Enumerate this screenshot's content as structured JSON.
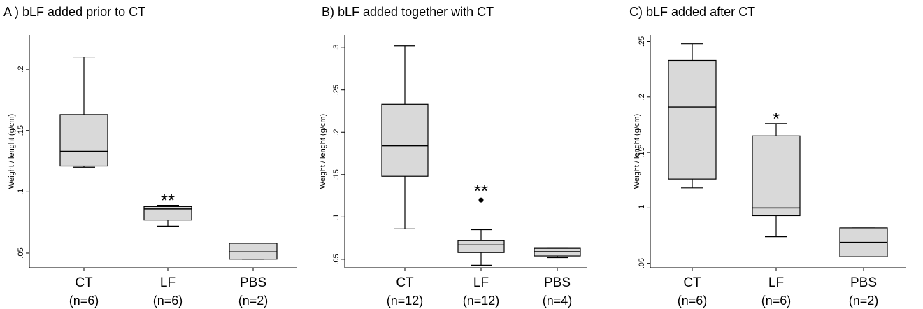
{
  "chart_data": [
    {
      "type": "box",
      "title": "A ) bLF added prior to CT",
      "ylabel": "Weight / lenght (g/cm)",
      "ylim": [
        0.038,
        0.228
      ],
      "yticks": [
        0.05,
        0.1,
        0.15,
        0.2
      ],
      "ytick_labels": [
        ".05",
        ".1",
        ".15",
        ".2"
      ],
      "categories": [
        {
          "name": "CT",
          "n_label": "(n=6)"
        },
        {
          "name": "LF",
          "n_label": "(n=6)"
        },
        {
          "name": "PBS",
          "n_label": "(n=2)"
        }
      ],
      "boxes": [
        {
          "whisker_low": 0.12,
          "q1": 0.121,
          "median": 0.133,
          "q3": 0.163,
          "whisker_high": 0.21,
          "outliers": [],
          "annotation": ""
        },
        {
          "whisker_low": 0.072,
          "q1": 0.077,
          "median": 0.086,
          "q3": 0.088,
          "whisker_high": 0.089,
          "outliers": [],
          "annotation": "**"
        },
        {
          "whisker_low": 0.045,
          "q1": 0.045,
          "median": 0.051,
          "q3": 0.058,
          "whisker_high": 0.058,
          "outliers": [],
          "annotation": ""
        }
      ]
    },
    {
      "type": "box",
      "title": "B) bLF added together with CT",
      "ylabel": "Weight / lenght (g/cm)",
      "ylim": [
        0.04,
        0.315
      ],
      "yticks": [
        0.05,
        0.1,
        0.15,
        0.2,
        0.25,
        0.3
      ],
      "ytick_labels": [
        ".05",
        ".1",
        ".15",
        ".2",
        ".25",
        ".3"
      ],
      "categories": [
        {
          "name": "CT",
          "n_label": "(n=12)"
        },
        {
          "name": "LF",
          "n_label": "(n=12)"
        },
        {
          "name": "PBS",
          "n_label": "(n=4)"
        }
      ],
      "boxes": [
        {
          "whisker_low": 0.086,
          "q1": 0.148,
          "median": 0.184,
          "q3": 0.233,
          "whisker_high": 0.302,
          "outliers": [],
          "annotation": ""
        },
        {
          "whisker_low": 0.043,
          "q1": 0.058,
          "median": 0.067,
          "q3": 0.072,
          "whisker_high": 0.085,
          "outliers": [
            0.12
          ],
          "annotation": "**"
        },
        {
          "whisker_low": 0.052,
          "q1": 0.054,
          "median": 0.059,
          "q3": 0.063,
          "whisker_high": 0.063,
          "outliers": [],
          "annotation": ""
        }
      ]
    },
    {
      "type": "box",
      "title": "C) bLF added after CT",
      "ylabel": "Weight / lenght (g/cm)",
      "ylim": [
        0.046,
        0.256
      ],
      "yticks": [
        0.05,
        0.1,
        0.15,
        0.2,
        0.25
      ],
      "ytick_labels": [
        ".05",
        ".1",
        ".15",
        ".2",
        ".25"
      ],
      "categories": [
        {
          "name": "CT",
          "n_label": "(n=6)"
        },
        {
          "name": "LF",
          "n_label": "(n=6)"
        },
        {
          "name": "PBS",
          "n_label": "(n=2)"
        }
      ],
      "boxes": [
        {
          "whisker_low": 0.118,
          "q1": 0.126,
          "median": 0.191,
          "q3": 0.233,
          "whisker_high": 0.248,
          "outliers": [],
          "annotation": ""
        },
        {
          "whisker_low": 0.074,
          "q1": 0.093,
          "median": 0.1,
          "q3": 0.165,
          "whisker_high": 0.176,
          "outliers": [],
          "annotation": "*"
        },
        {
          "whisker_low": 0.056,
          "q1": 0.056,
          "median": 0.069,
          "q3": 0.082,
          "whisker_high": 0.082,
          "outliers": [],
          "annotation": ""
        }
      ]
    }
  ],
  "style": {
    "box_fill": "#d9d9d9",
    "line_color": "#000000"
  }
}
